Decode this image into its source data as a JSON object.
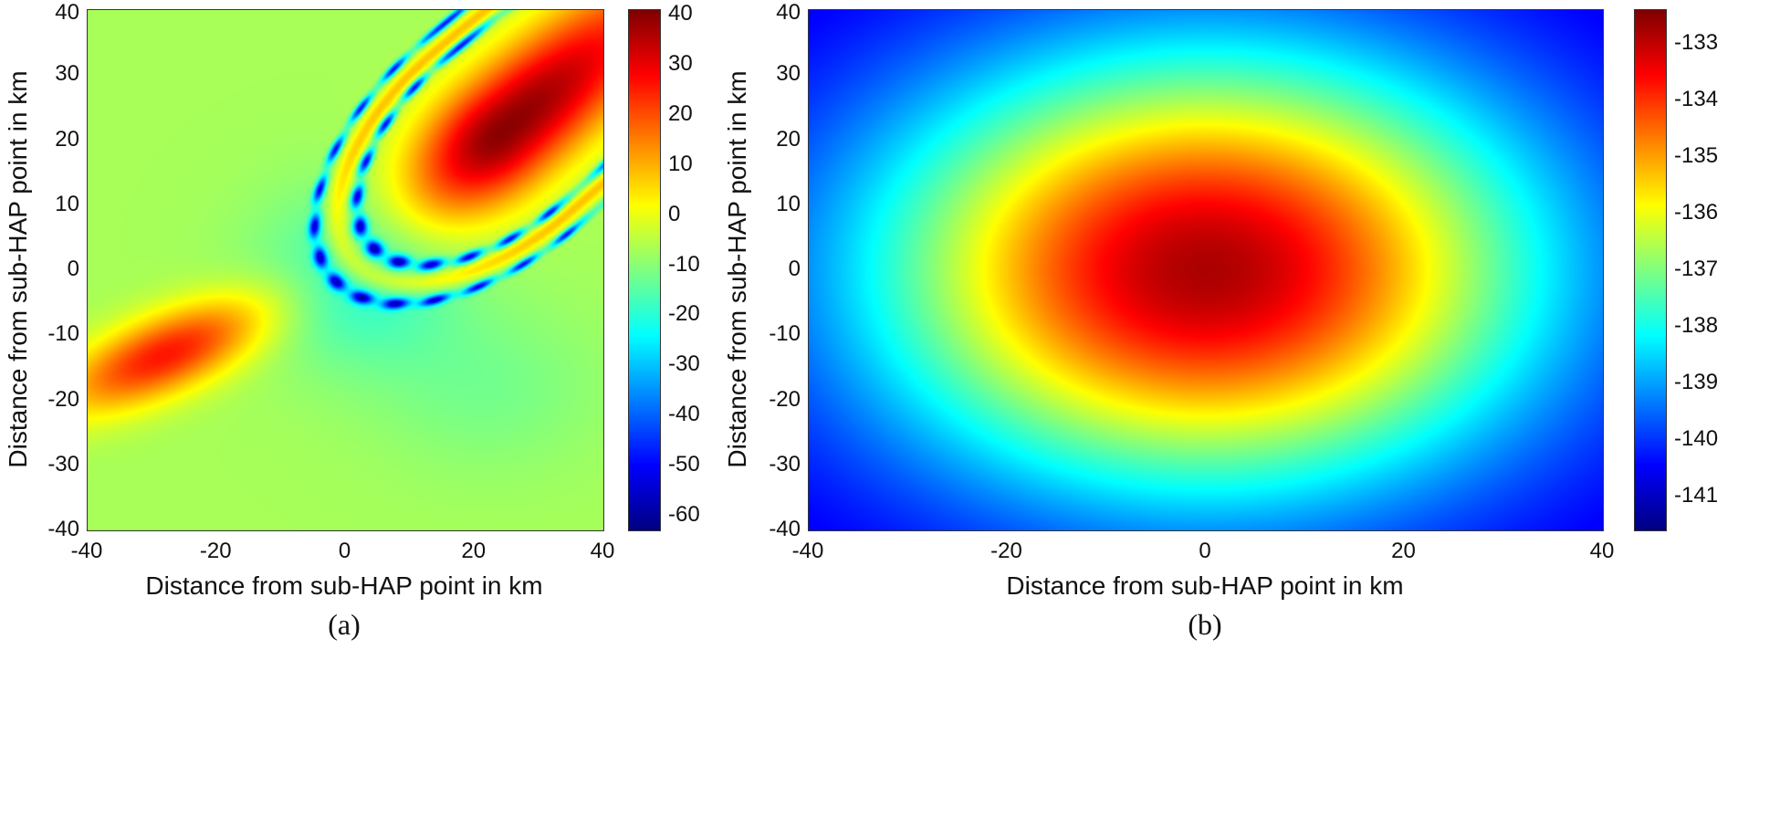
{
  "background_color": "#ffffff",
  "chart_data": [
    {
      "type": "heatmap",
      "panel": "a",
      "sublabel": "(a)",
      "title": "",
      "xlabel": "Distance from sub-HAP point in km",
      "ylabel": "Distance from sub-HAP point in km",
      "xlim": [
        -40,
        40
      ],
      "ylim": [
        -40,
        40
      ],
      "x_ticks": [
        -40,
        -20,
        0,
        20,
        40
      ],
      "y_ticks": [
        -40,
        -30,
        -20,
        -10,
        0,
        10,
        20,
        30,
        40
      ],
      "colormap": "jet",
      "color_domain": [
        -63,
        41
      ],
      "colorbar_ticks": [
        40,
        30,
        20,
        10,
        0,
        -10,
        -20,
        -30,
        -40,
        -50,
        -60
      ],
      "field": {
        "model": "lobe_pattern",
        "unit": "dB",
        "description": "Gain map: tilted main beam toward upper-right with deep dashed null rings, secondary beam toward lower-left, green background with teal dips",
        "background": -7,
        "background_dips": [
          {
            "center": [
              2,
              -1
            ],
            "sigma": [
              15,
              13
            ],
            "amplitude": -13
          },
          {
            "center": [
              22,
              -18
            ],
            "sigma": [
              18,
              13
            ],
            "amplitude": -5
          }
        ],
        "main_lobe": {
          "center": [
            24,
            21
          ],
          "angle_deg": 40,
          "amplitude": 47,
          "sigma_long_out": 26,
          "sigma_long_in": 12,
          "sigma_short": 6.5,
          "sidelobe": {
            "radius": 2.5,
            "width": 0.18,
            "amplitude": 13
          },
          "null_rings": [
            {
              "radius": 2.2,
              "width": 0.1,
              "depth": 42,
              "dash_freq": 22
            },
            {
              "radius": 2.85,
              "width": 0.09,
              "depth": 38,
              "dash_freq": 26
            }
          ]
        },
        "secondary_lobe": {
          "center": [
            -28,
            -13
          ],
          "angle_deg": 23,
          "amplitude": 33,
          "sigma_long": 12,
          "sigma_short": 4.2
        }
      }
    },
    {
      "type": "heatmap",
      "panel": "b",
      "sublabel": "(b)",
      "title": "",
      "xlabel": "Distance from sub-HAP point in km",
      "ylabel": "Distance from sub-HAP point in km",
      "xlim": [
        -40,
        40
      ],
      "ylim": [
        -40,
        40
      ],
      "x_ticks": [
        -40,
        -20,
        0,
        20,
        40
      ],
      "y_ticks": [
        -40,
        -30,
        -20,
        -10,
        0,
        10,
        20,
        30,
        40
      ],
      "colormap": "jet",
      "color_domain": [
        -141.6,
        -132.4
      ],
      "colorbar_ticks": [
        -133,
        -134,
        -135,
        -136,
        -137,
        -138,
        -139,
        -140,
        -141
      ],
      "field": {
        "model": "radial_gaussian",
        "unit": "dB",
        "description": "Radially symmetric received-power footprint centered on sub-HAP point: dark-red peak at center decaying through yellow and cyan rings to blue corners",
        "center": [
          0,
          0
        ],
        "peak": -132.8,
        "floor": -140.9,
        "sigma_km": 23
      }
    }
  ]
}
